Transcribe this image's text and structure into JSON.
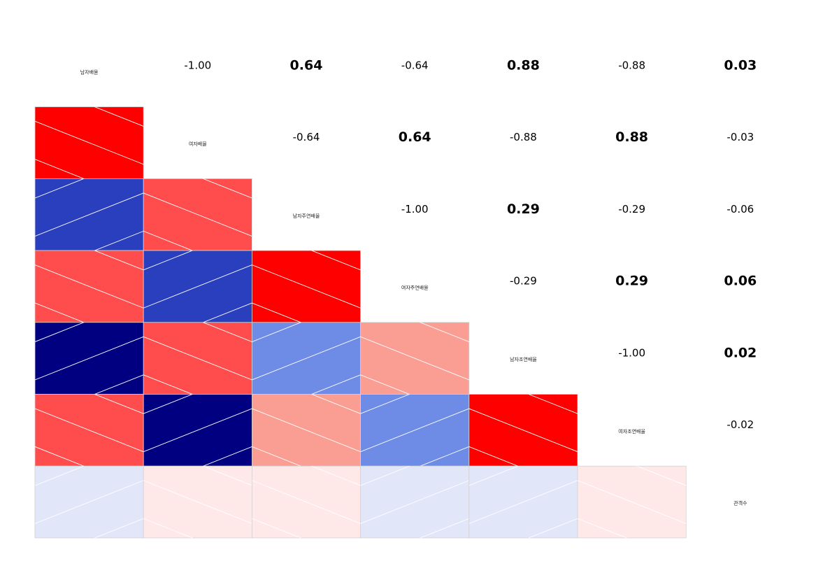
{
  "chart_data": {
    "type": "heatmap",
    "variables": [
      "남자배율",
      "여자배율",
      "남자주연배율",
      "여자주연배율",
      "남자조연배율",
      "여자조연배율",
      "관객수"
    ],
    "matrix": [
      [
        1.0,
        -1.0,
        0.64,
        -0.64,
        0.88,
        -0.88,
        0.03
      ],
      [
        -1.0,
        1.0,
        -0.64,
        0.64,
        -0.88,
        0.88,
        -0.03
      ],
      [
        0.64,
        -0.64,
        1.0,
        -1.0,
        0.29,
        -0.29,
        -0.06
      ],
      [
        -0.64,
        0.64,
        -1.0,
        1.0,
        -0.29,
        0.29,
        0.06
      ],
      [
        0.88,
        -0.88,
        0.29,
        -0.29,
        1.0,
        -1.0,
        0.02
      ],
      [
        -0.88,
        0.88,
        -0.29,
        0.29,
        -1.0,
        1.0,
        -0.02
      ],
      [
        0.03,
        -0.03,
        -0.06,
        0.06,
        0.02,
        -0.02,
        1.0
      ]
    ],
    "upper_labels": [
      [
        "",
        "-1.00",
        "0.64",
        "-0.64",
        "0.88",
        "-0.88",
        "0.03"
      ],
      [
        "",
        "",
        "-0.64",
        "0.64",
        "-0.88",
        "0.88",
        "-0.03"
      ],
      [
        "",
        "",
        "",
        "-1.00",
        "0.29",
        "-0.29",
        "-0.06"
      ],
      [
        "",
        "",
        "",
        "",
        "-0.29",
        "0.29",
        "0.06"
      ],
      [
        "",
        "",
        "",
        "",
        "",
        "-1.00",
        "0.02"
      ],
      [
        "",
        "",
        "",
        "",
        "",
        "",
        "-0.02"
      ],
      [
        "",
        "",
        "",
        "",
        "",
        "",
        ""
      ]
    ],
    "lower_panel": "shade",
    "upper_panel": "values",
    "colors": {
      "pos_dark": "#000080",
      "pos_mid": "#2a3fbd",
      "pos_light": "#6e8be6",
      "pos_faint": "#e1e6f8",
      "neg_full": "#ff0000",
      "neg_mid": "#ff4c4c",
      "neg_light": "#fa9e94",
      "neg_faint": "#ffe8e8"
    }
  }
}
